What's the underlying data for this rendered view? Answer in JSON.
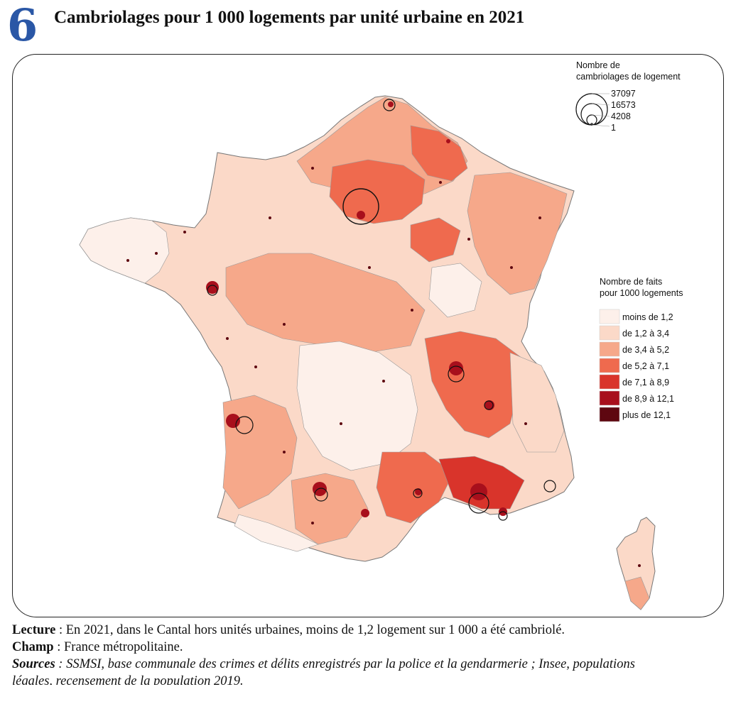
{
  "figure": {
    "number": "6",
    "title": "Cambriolages pour 1 000 logements par unité urbaine en 2021"
  },
  "size_legend": {
    "title_line1": "Nombre de",
    "title_line2": "cambriolages de logement",
    "values": [
      "37097",
      "16573",
      "4208",
      "1"
    ]
  },
  "color_legend": {
    "title_line1": "Nombre de faits",
    "title_line2": "pour 1000 logements",
    "classes": [
      {
        "label": "moins de 1,2",
        "color": "#fdf0ea"
      },
      {
        "label": "de 1,2 à 3,4",
        "color": "#fbd9c8"
      },
      {
        "label": "de 3,4 à 5,2",
        "color": "#f6a88a"
      },
      {
        "label": "de 5,2 à 7,1",
        "color": "#ef6a4e"
      },
      {
        "label": "de 7,1 à 8,9",
        "color": "#d9342b"
      },
      {
        "label": "de 8,9 à 12,1",
        "color": "#a80f1c"
      },
      {
        "label": "plus de 12,1",
        "color": "#5e0710"
      }
    ]
  },
  "notes": {
    "lecture_label": "Lecture",
    "lecture_text": " : En 2021, dans le Cantal hors unités urbaines, moins de 1,2 logement sur 1 000 a été cambriolé.",
    "champ_label": "Champ",
    "champ_text": " : France métropolitaine.",
    "sources_label": "Sources",
    "sources_text_1": " : SSMSI, base communale des crimes et délits enregistrés par la police et la gendarmerie ; Insee, populations",
    "sources_text_2": "légales, recensement de la population 2019."
  }
}
